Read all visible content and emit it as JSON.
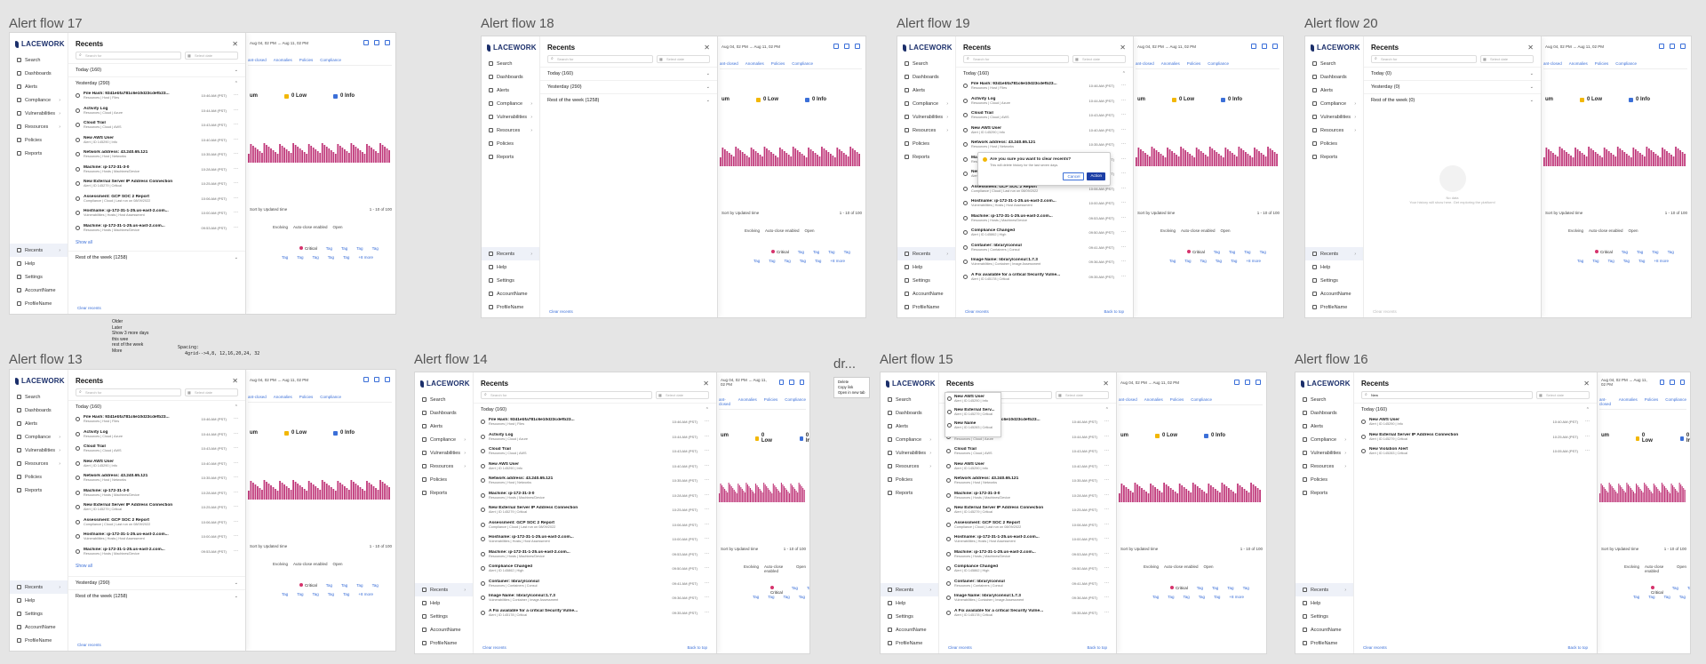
{
  "flows": {
    "f17": "Alert flow 17",
    "f18": "Alert flow 18",
    "f19": "Alert flow 19",
    "f20": "Alert flow 20",
    "f13": "Alert flow 13",
    "f14": "Alert flow 14",
    "f15": "dr...",
    "f15b": "Alert flow 15",
    "f16": "Alert flow 16"
  },
  "brand": "LACEWORK",
  "nav": {
    "top": [
      "Search",
      "Dashboards",
      "Alerts",
      "Compliance",
      "Vulnerabilities",
      "Resources",
      "Policies",
      "Reports"
    ],
    "bottom": [
      "Recents",
      "Help",
      "Settings",
      "AccountName",
      "ProfileName"
    ]
  },
  "dash": {
    "date_range": "Aug 04, 02 PM → Aug 11, 02 PM",
    "tabs": [
      "ant-closed",
      "Anomalies",
      "Policies",
      "Compliance"
    ],
    "sev_low": "0 Low",
    "sev_info": "0 Info",
    "sev_um": "um",
    "sort": "Sort by Updated time",
    "pager": "1 - 10 of 100",
    "filters": [
      "Evolving",
      "Auto-close enabled",
      "Open"
    ],
    "critical": "Critical",
    "tag": "Tag",
    "more": "+8 more"
  },
  "panel": {
    "title": "Recents",
    "search_ph": "Search for",
    "search_typed": "New",
    "date_ph": "Select date",
    "today": "Today (160)",
    "today0": "Today (0)",
    "yesterday": "Yesterday (290)",
    "yesterday0": "Yesterday (0)",
    "rest": "Rest of the week (1258)",
    "rest0": "Rest of the week (0)",
    "show_all": "Show all",
    "clear": "Clear recents",
    "back": "Back to top",
    "empty_title": "No data",
    "empty_sub": "Your history will show here. Get exploring the platform!"
  },
  "items": [
    {
      "name": "File Hash: 9341ebfa781c6e10d23cdefb23...",
      "sub": "Resources | Host | Files",
      "time": "10:46 AM (PST)"
    },
    {
      "name": "Activity Log",
      "sub": "Resources | Cloud | Azure",
      "time": "10:44 AM (PST)"
    },
    {
      "name": "Cloud Trail",
      "sub": "Resources | Cloud | AWS",
      "time": "10:43 AM (PST)"
    },
    {
      "name": "New AWS User",
      "sub": "Alert | ID 145290 | Info",
      "time": "10:40 AM (PST)"
    },
    {
      "name": "Network address: 43.240.65.121",
      "sub": "Resources | Host | Networks",
      "time": "10:35 AM (PST)"
    },
    {
      "name": "Machine: ip-172-31-3-0",
      "sub": "Resources | Hosts | Machines/Device",
      "time": "10:28 AM (PST)"
    },
    {
      "name": "New External Server IP Address Connection",
      "sub": "Alert | ID 145279 | Critical",
      "time": "10:25 AM (PST)"
    },
    {
      "name": "Assessment: GCP SOC 2 Report",
      "sub": "Compliance | Cloud | Last run on 08/09/2022",
      "time": "10:06 AM (PST)"
    },
    {
      "name": "Hostname: ip-172-31-1-25.us-east-2.com...",
      "sub": "Vulnerabilities | Hosts | Host Assessment",
      "time": "10:00 AM (PST)"
    },
    {
      "name": "Machine: ip-172-31-1-25.us-east-2.com...",
      "sub": "Resources | Hosts | Machines/Device",
      "time": "09:53 AM (PST)"
    },
    {
      "name": "Compliance Changed",
      "sub": "Alert | ID 145862 | High",
      "time": "09:50 AM (PST)"
    },
    {
      "name": "Container: library/consul",
      "sub": "Resources | Containers | Consul",
      "time": "09:41 AM (PST)"
    },
    {
      "name": "Image Name: library/consul:1.7.3",
      "sub": "Vulnerabilities | Container | Image Assessment",
      "time": "09:36 AM (PST)"
    },
    {
      "name": "A Fix available for a critical Security Vulne...",
      "sub": "Alert | ID 145178 | Critical",
      "time": "09:35 AM (PST)"
    }
  ],
  "search_results": [
    {
      "name": "New AWS User",
      "sub": "Alert | ID 145290 | Info",
      "time": "10:40 AM (PST)"
    },
    {
      "name": "New External Server IP Address Connection",
      "sub": "Alert | ID 145279 | Critical",
      "time": "10:25 AM (PST)"
    },
    {
      "name": "New Violation Alert",
      "sub": "Alert | ID 145283 | Critical",
      "time": "10:05 AM (PST)"
    }
  ],
  "dropdown": [
    {
      "name": "New AWS User",
      "sub": "Alert | ID 145290 | Info"
    },
    {
      "name": "New External Serv...",
      "sub": "Alert | ID 145279 | Critical"
    },
    {
      "name": "New Name",
      "sub": "Alert | ID 145283 | Critical"
    }
  ],
  "dialog": {
    "title": "Are you sure you want to clear recents?",
    "sub": "This will delete history for the last seven days.",
    "cancel": "Cancel",
    "action": "Action"
  },
  "notes": {
    "n1": [
      "Older",
      "Later",
      "Show 3 more days",
      "this wee",
      "rest of the week",
      "More"
    ],
    "spacing": "Spacing:",
    "grid": "4grid-->4,8, 12,16,20,24, 32"
  },
  "context_menu": [
    "Delete",
    "Copy link",
    "Open in new tab"
  ],
  "colors": {
    "brand": "#1b2f6b",
    "accent": "#3b6fd8",
    "bars": "#c0387a",
    "low": "#f2b705",
    "info": "#3b6fd8"
  }
}
